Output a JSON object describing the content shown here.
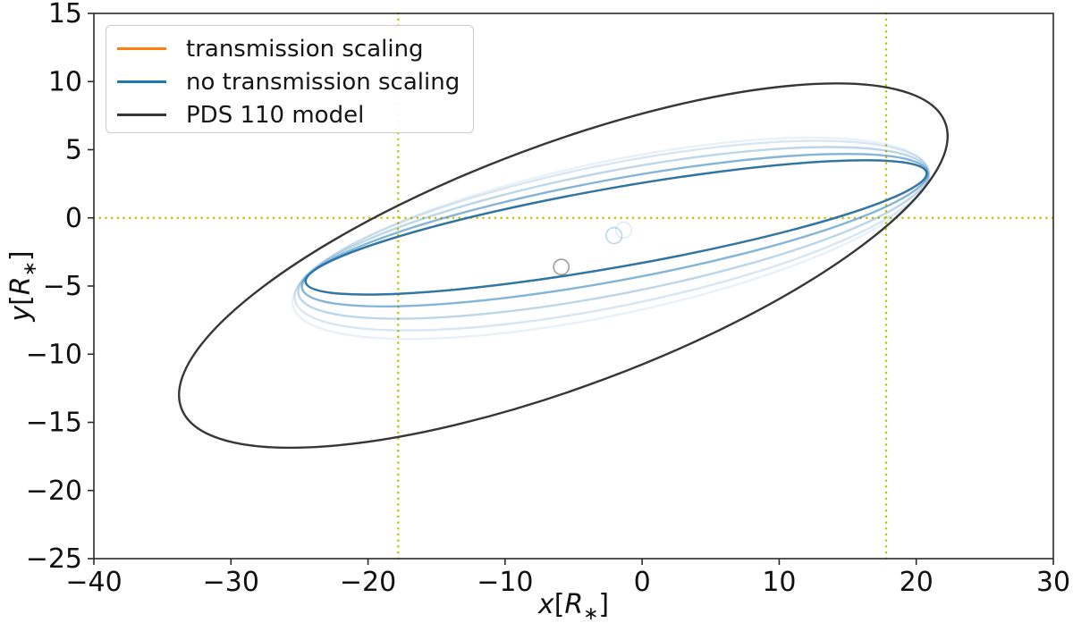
{
  "chart_data": {
    "type": "line",
    "title": "",
    "xlabel": {
      "variable": "x",
      "unit": "R",
      "subscript": "∗",
      "display": "x[R∗]"
    },
    "ylabel": {
      "variable": "y",
      "unit": "R",
      "subscript": "∗",
      "display": "y[R∗]"
    },
    "xlim": [
      -40,
      30
    ],
    "ylim": [
      -25,
      15
    ],
    "xticks": [
      -40,
      -30,
      -20,
      -10,
      0,
      10,
      20,
      30
    ],
    "yticks": [
      -25,
      -20,
      -15,
      -10,
      -5,
      0,
      5,
      10,
      15
    ],
    "grid": false,
    "legend": {
      "position": "upper left",
      "entries": [
        {
          "label": "transmission scaling",
          "color": "#ff7f0e"
        },
        {
          "label": "no transmission scaling",
          "color": "#1f77b4"
        },
        {
          "label": "PDS 110 model",
          "color": "#363636"
        }
      ]
    },
    "reference_lines": {
      "color": "#c2c200",
      "style": "dotted",
      "horizontal": [
        0
      ],
      "vertical": [
        -17.8,
        17.8
      ]
    },
    "series": [
      {
        "name": "transmission scaling",
        "color": "#ff7f0e",
        "note": "coincides with the 'no transmission scaling' curve and is hidden beneath it",
        "line_width": 2.4,
        "ellipses": [
          {
            "cx": -1.9,
            "cy": -0.7,
            "a": 23.0,
            "b": 2.9,
            "angle": 10,
            "alpha": 1.0
          }
        ]
      },
      {
        "name": "no transmission scaling",
        "color": "#1f77b4",
        "note": "ring orbit trail drawn with increasing opacity; fades toward older positions",
        "line_width": 2.4,
        "ellipses": [
          {
            "cx": -2.3,
            "cy": -1.5,
            "a": 23.7,
            "b": 5.6,
            "angle": 12.0,
            "alpha": 0.1
          },
          {
            "cx": -2.2,
            "cy": -1.3,
            "a": 23.6,
            "b": 5.2,
            "angle": 11.5,
            "alpha": 0.18
          },
          {
            "cx": -2.1,
            "cy": -1.1,
            "a": 23.4,
            "b": 4.5,
            "angle": 11.0,
            "alpha": 0.3
          },
          {
            "cx": -2.0,
            "cy": -0.9,
            "a": 23.2,
            "b": 3.7,
            "angle": 10.5,
            "alpha": 0.55
          },
          {
            "cx": -1.9,
            "cy": -0.7,
            "a": 23.0,
            "b": 2.9,
            "angle": 10.0,
            "alpha": 0.95
          }
        ]
      },
      {
        "name": "PDS 110 model",
        "color": "#363636",
        "line_width": 2.4,
        "ellipses": [
          {
            "cx": -5.75,
            "cy": -3.5,
            "a": 29.75,
            "b": 8.86,
            "angle": 20.5,
            "alpha": 1.0
          }
        ]
      }
    ],
    "markers": [
      {
        "label": "star-position-model",
        "x": -5.9,
        "y": -3.6,
        "r": 0.56,
        "color": "#888888",
        "alpha": 0.85
      },
      {
        "label": "star-position-trail",
        "x": -2.05,
        "y": -1.3,
        "r": 0.58,
        "color": "#1f77b4",
        "alpha": 0.3
      },
      {
        "label": "star-position-trail-faint",
        "x": -1.35,
        "y": -0.9,
        "r": 0.58,
        "color": "#1f77b4",
        "alpha": 0.14
      }
    ],
    "axis": {
      "tick_font_size": 30,
      "label_font_size": 30,
      "spine_color": "#2a2a2a"
    }
  }
}
